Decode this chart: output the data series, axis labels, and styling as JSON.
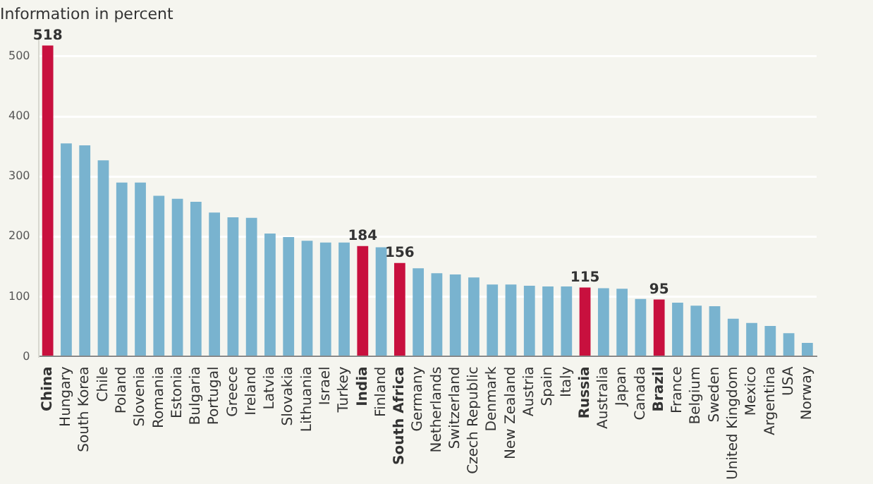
{
  "chart_data": {
    "type": "bar",
    "ylabel": "Information in percent",
    "categories": [
      "China",
      "Hungary",
      "South Korea",
      "Chile",
      "Poland",
      "Slovenia",
      "Romania",
      "Estonia",
      "Bulgaria",
      "Portugal",
      "Greece",
      "Ireland",
      "Latvia",
      "Slovakia",
      "Lithuania",
      "Israel",
      "Turkey",
      "India",
      "Finland",
      "South Africa",
      "Germany",
      "Netherlands",
      "Switzerland",
      "Czech Republic",
      "Denmark",
      "New Zealand",
      "Austria",
      "Spain",
      "Italy",
      "Russia",
      "Australia",
      "Japan",
      "Canada",
      "Brazil",
      "France",
      "Belgium",
      "Sweden",
      "United Kingdom",
      "Mexico",
      "Argentina",
      "USA",
      "Norway"
    ],
    "values": [
      518,
      355,
      352,
      327,
      290,
      290,
      268,
      263,
      258,
      240,
      232,
      231,
      205,
      199,
      193,
      190,
      190,
      184,
      182,
      156,
      147,
      139,
      137,
      132,
      120,
      120,
      118,
      117,
      117,
      115,
      114,
      113,
      96,
      95,
      90,
      85,
      84,
      63,
      56,
      51,
      39,
      23
    ],
    "colors": [
      "#c8103e",
      "#79b3cf",
      "#79b3cf",
      "#79b3cf",
      "#79b3cf",
      "#79b3cf",
      "#79b3cf",
      "#79b3cf",
      "#79b3cf",
      "#79b3cf",
      "#79b3cf",
      "#79b3cf",
      "#79b3cf",
      "#79b3cf",
      "#79b3cf",
      "#79b3cf",
      "#79b3cf",
      "#c8103e",
      "#79b3cf",
      "#c8103e",
      "#79b3cf",
      "#79b3cf",
      "#79b3cf",
      "#79b3cf",
      "#79b3cf",
      "#79b3cf",
      "#79b3cf",
      "#79b3cf",
      "#79b3cf",
      "#c8103e",
      "#79b3cf",
      "#79b3cf",
      "#79b3cf",
      "#c8103e",
      "#79b3cf",
      "#79b3cf",
      "#79b3cf",
      "#79b3cf",
      "#79b3cf",
      "#79b3cf",
      "#79b3cf",
      "#79b3cf"
    ],
    "value_labels": [
      "518",
      null,
      null,
      null,
      null,
      null,
      null,
      null,
      null,
      null,
      null,
      null,
      null,
      null,
      null,
      null,
      null,
      "184",
      null,
      "156",
      null,
      null,
      null,
      null,
      null,
      null,
      null,
      null,
      null,
      "115",
      null,
      null,
      null,
      "95",
      null,
      null,
      null,
      null,
      null,
      null,
      null,
      null
    ],
    "ylim": [
      0,
      530
    ],
    "yticks": [
      0,
      100,
      200,
      300,
      400,
      500
    ],
    "grid": "y",
    "legend": false
  }
}
